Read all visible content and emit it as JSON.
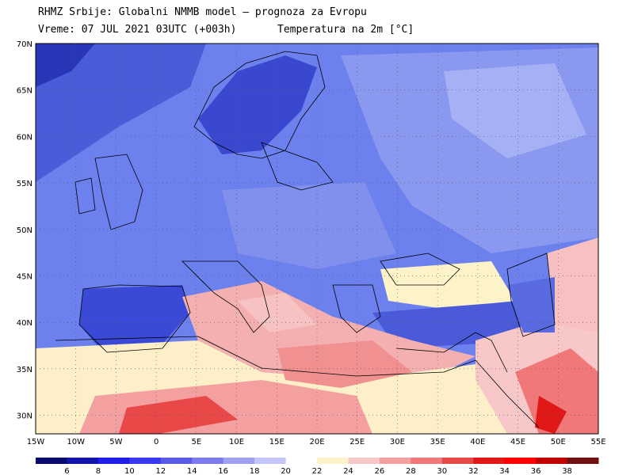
{
  "header": {
    "line1": "RHMZ Srbije: Globalni NMMB model — prognoza za Evropu",
    "valid_time": "Vreme: 07 JUL 2021 03UTC (+003h)",
    "parameter": "Temperatura na 2m [°C]"
  },
  "map": {
    "lat_labels": [
      "70N",
      "65N",
      "60N",
      "55N",
      "50N",
      "45N",
      "40N",
      "35N",
      "30N"
    ],
    "lon_labels": [
      "15W",
      "10W",
      "5W",
      "0",
      "5E",
      "10E",
      "15E",
      "20E",
      "25E",
      "30E",
      "35E",
      "40E",
      "45E",
      "50E",
      "55E"
    ],
    "extent": {
      "lon_min": -15,
      "lon_max": 55,
      "lat_min": 28,
      "lat_max": 70
    },
    "gridlines": "dotted",
    "ocean_color": "#5a6fe0",
    "land_base_color": "#6b7ef0"
  },
  "colorbar": {
    "labels": [
      "6",
      "8",
      "10",
      "12",
      "14",
      "16",
      "18",
      "20",
      "22",
      "24",
      "26",
      "28",
      "30",
      "32",
      "34",
      "36",
      "38"
    ],
    "colors": [
      "#0a0a70",
      "#1414a8",
      "#1e1ee6",
      "#3a3af0",
      "#5a5ae6",
      "#7c7cf0",
      "#a0a0f2",
      "#c4c4f8",
      "#ffffff",
      "#fdf3c8",
      "#f8c8c8",
      "#f4a0a0",
      "#f07878",
      "#e84848",
      "#e01818",
      "#ff0000",
      "#c00000",
      "#701010"
    ]
  }
}
